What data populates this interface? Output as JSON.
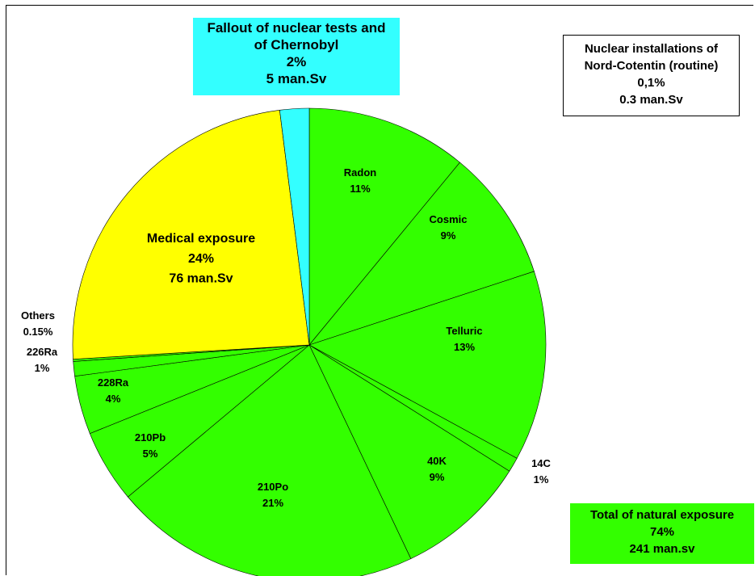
{
  "chart_data": {
    "type": "pie",
    "slices": [
      {
        "name": "Radon",
        "text": "11%",
        "value": 11,
        "color": "#33ff00"
      },
      {
        "name": "Cosmic",
        "text": "9%",
        "value": 9,
        "color": "#33ff00"
      },
      {
        "name": "Telluric",
        "text": "13%",
        "value": 13,
        "color": "#33ff00"
      },
      {
        "name": "14C",
        "text": "1%",
        "value": 1,
        "color": "#33ff00"
      },
      {
        "name": "40K",
        "text": "9%",
        "value": 9,
        "color": "#33ff00"
      },
      {
        "name": "210Po",
        "text": "21%",
        "value": 21,
        "color": "#33ff00"
      },
      {
        "name": "210Pb",
        "text": "5%",
        "value": 5,
        "color": "#33ff00"
      },
      {
        "name": "228Ra",
        "text": "4%",
        "value": 4,
        "color": "#33ff00"
      },
      {
        "name": "226Ra",
        "text": "1%",
        "value": 1,
        "color": "#33ff00"
      },
      {
        "name": "Others",
        "text": "0.15%",
        "value": 0.15,
        "color": "#33ff00"
      },
      {
        "name": "Medical exposure",
        "text": "24%",
        "value": 24,
        "dose": "76 man.Sv",
        "color": "#ffff00"
      },
      {
        "name": "Fallout of nuclear tests and of Chernobyl",
        "text": "2%",
        "value": 2,
        "color": "#33ffff"
      }
    ],
    "annotations": {
      "fallout": {
        "line1": "Fallout of nuclear tests and",
        "line2": "of Chernobyl",
        "pct": "2%",
        "dose": "5 man.Sv"
      },
      "nuclear": {
        "line1": "Nuclear installations of",
        "line2": "Nord-Cotentin (routine)",
        "pct": "0,1%",
        "dose": "0.3 man.Sv"
      },
      "natural": {
        "line1": "Total of natural exposure",
        "pct": "74%",
        "dose": "241 man.sv"
      }
    }
  }
}
